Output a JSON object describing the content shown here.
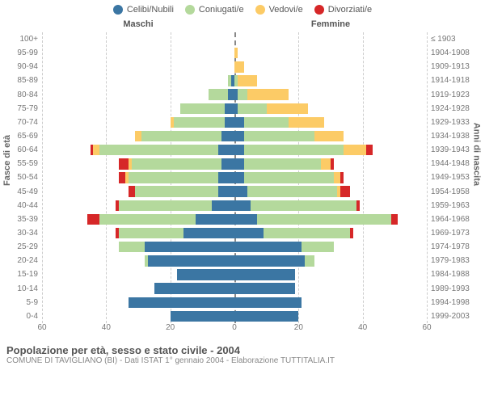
{
  "chart": {
    "type": "population-pyramid",
    "legend": [
      {
        "label": "Celibi/Nubili",
        "color": "#3b76a3"
      },
      {
        "label": "Coniugati/e",
        "color": "#b4d99c"
      },
      {
        "label": "Vedovi/e",
        "color": "#fccb66"
      },
      {
        "label": "Divorziati/e",
        "color": "#d62728"
      }
    ],
    "header_left": "Maschi",
    "header_right": "Femmine",
    "ylabel_left": "Fasce di età",
    "ylabel_right": "Anni di nascita",
    "xmax": 60,
    "xticks": [
      -60,
      -40,
      -20,
      0,
      20,
      40,
      60
    ],
    "xtick_labels": [
      "60",
      "40",
      "20",
      "0",
      "20",
      "40",
      "60"
    ],
    "background_color": "#ffffff",
    "grid_color": "#cccccc",
    "rows": [
      {
        "age": "100+",
        "year": "≤ 1903",
        "m": [
          0,
          0,
          0,
          0
        ],
        "f": [
          0,
          0,
          0,
          0
        ]
      },
      {
        "age": "95-99",
        "year": "1904-1908",
        "m": [
          0,
          0,
          0,
          0
        ],
        "f": [
          0,
          0,
          1,
          0
        ]
      },
      {
        "age": "90-94",
        "year": "1909-1913",
        "m": [
          0,
          0,
          0,
          0
        ],
        "f": [
          0,
          0,
          3,
          0
        ]
      },
      {
        "age": "85-89",
        "year": "1914-1918",
        "m": [
          1,
          1,
          0,
          0
        ],
        "f": [
          0,
          1,
          6,
          0
        ]
      },
      {
        "age": "80-84",
        "year": "1919-1923",
        "m": [
          2,
          6,
          0,
          0
        ],
        "f": [
          1,
          3,
          13,
          0
        ]
      },
      {
        "age": "75-79",
        "year": "1924-1928",
        "m": [
          3,
          14,
          0,
          0
        ],
        "f": [
          1,
          9,
          13,
          0
        ]
      },
      {
        "age": "70-74",
        "year": "1929-1933",
        "m": [
          3,
          16,
          1,
          0
        ],
        "f": [
          3,
          14,
          11,
          0
        ]
      },
      {
        "age": "65-69",
        "year": "1934-1938",
        "m": [
          4,
          25,
          2,
          0
        ],
        "f": [
          3,
          22,
          9,
          0
        ]
      },
      {
        "age": "60-64",
        "year": "1939-1943",
        "m": [
          5,
          37,
          2,
          1
        ],
        "f": [
          3,
          31,
          7,
          2
        ]
      },
      {
        "age": "55-59",
        "year": "1944-1948",
        "m": [
          4,
          28,
          1,
          3
        ],
        "f": [
          3,
          24,
          3,
          1
        ]
      },
      {
        "age": "50-54",
        "year": "1949-1953",
        "m": [
          5,
          28,
          1,
          2
        ],
        "f": [
          3,
          28,
          2,
          1
        ]
      },
      {
        "age": "45-49",
        "year": "1954-1958",
        "m": [
          5,
          26,
          0,
          2
        ],
        "f": [
          4,
          28,
          1,
          3
        ]
      },
      {
        "age": "40-44",
        "year": "1959-1963",
        "m": [
          7,
          29,
          0,
          1
        ],
        "f": [
          5,
          33,
          0,
          1
        ]
      },
      {
        "age": "35-39",
        "year": "1964-1968",
        "m": [
          12,
          30,
          0,
          4
        ],
        "f": [
          7,
          42,
          0,
          2
        ]
      },
      {
        "age": "30-34",
        "year": "1969-1973",
        "m": [
          16,
          20,
          0,
          1
        ],
        "f": [
          9,
          27,
          0,
          1
        ]
      },
      {
        "age": "25-29",
        "year": "1974-1978",
        "m": [
          28,
          8,
          0,
          0
        ],
        "f": [
          21,
          10,
          0,
          0
        ]
      },
      {
        "age": "20-24",
        "year": "1979-1983",
        "m": [
          27,
          1,
          0,
          0
        ],
        "f": [
          22,
          3,
          0,
          0
        ]
      },
      {
        "age": "15-19",
        "year": "1984-1988",
        "m": [
          18,
          0,
          0,
          0
        ],
        "f": [
          19,
          0,
          0,
          0
        ]
      },
      {
        "age": "10-14",
        "year": "1989-1993",
        "m": [
          25,
          0,
          0,
          0
        ],
        "f": [
          19,
          0,
          0,
          0
        ]
      },
      {
        "age": "5-9",
        "year": "1994-1998",
        "m": [
          33,
          0,
          0,
          0
        ],
        "f": [
          21,
          0,
          0,
          0
        ]
      },
      {
        "age": "0-4",
        "year": "1999-2003",
        "m": [
          20,
          0,
          0,
          0
        ],
        "f": [
          20,
          0,
          0,
          0
        ]
      }
    ],
    "footer_title": "Popolazione per età, sesso e stato civile - 2004",
    "footer_subtitle": "COMUNE DI TAVIGLIANO (BI) - Dati ISTAT 1° gennaio 2004 - Elaborazione TUTTITALIA.IT"
  }
}
